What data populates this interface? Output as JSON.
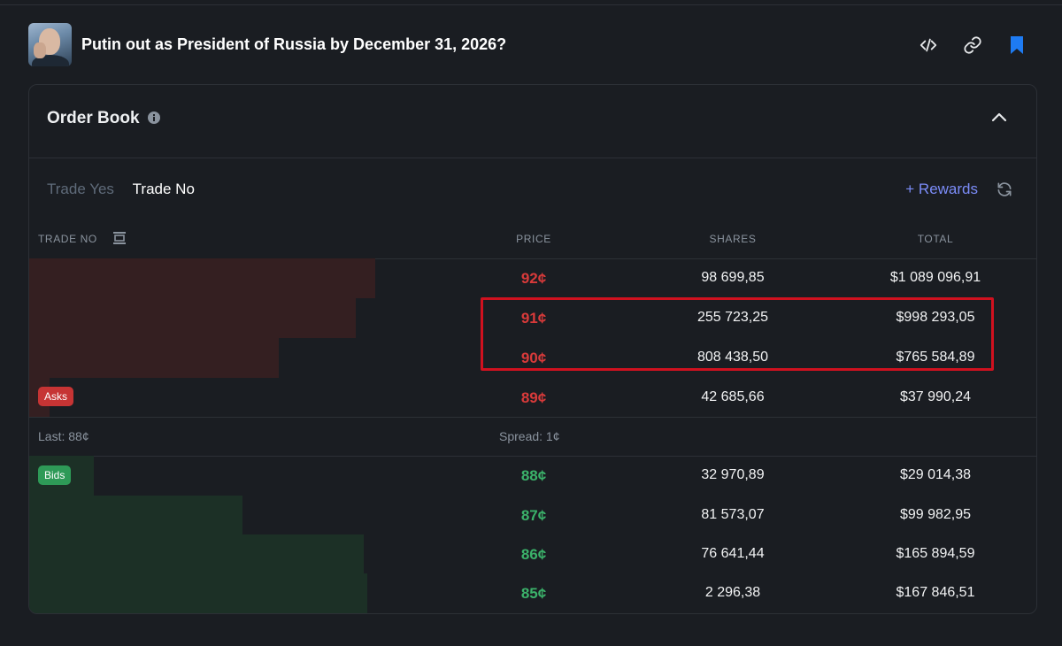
{
  "header": {
    "title": "Putin out as President of Russia by December 31, 2026?"
  },
  "order_book": {
    "title": "Order Book",
    "tabs": [
      {
        "label": "Trade Yes",
        "active": false
      },
      {
        "label": "Trade No",
        "active": true
      }
    ],
    "rewards_label": "+ Rewards",
    "columns": {
      "trade": "TRADE NO",
      "price": "PRICE",
      "shares": "SHARES",
      "total": "TOTAL"
    },
    "asks": [
      {
        "price": "92¢",
        "shares": "98 699,85",
        "total": "$1 089 096,91",
        "depth": 0.86
      },
      {
        "price": "91¢",
        "shares": "255 723,25",
        "total": "$998 293,05",
        "depth": 0.81
      },
      {
        "price": "90¢",
        "shares": "808 438,50",
        "total": "$765 584,89",
        "depth": 0.62
      },
      {
        "price": "89¢",
        "shares": "42 685,66",
        "total": "$37 990,24",
        "depth": 0.05
      }
    ],
    "asks_label": "Asks",
    "last": "Last: 88¢",
    "spread": "Spread: 1¢",
    "bids_label": "Bids",
    "bids": [
      {
        "price": "88¢",
        "shares": "32 970,89",
        "total": "$29 014,38",
        "depth": 0.16
      },
      {
        "price": "87¢",
        "shares": "81 573,07",
        "total": "$99 982,95",
        "depth": 0.53
      },
      {
        "price": "86¢",
        "shares": "76 641,44",
        "total": "$165 894,59",
        "depth": 0.83
      },
      {
        "price": "85¢",
        "shares": "2 296,38",
        "total": "$167 846,51",
        "depth": 0.84
      }
    ]
  },
  "colors": {
    "ask": "#d83a3a",
    "bid": "#3bb26a",
    "rewards": "#7b8cf8",
    "highlight": "#d0111f",
    "bookmark": "#1e7bf2"
  },
  "icons": [
    "embed-icon",
    "link-icon",
    "bookmark-icon",
    "info-icon",
    "chevron-up-icon",
    "depth-icon",
    "refresh-icon"
  ]
}
